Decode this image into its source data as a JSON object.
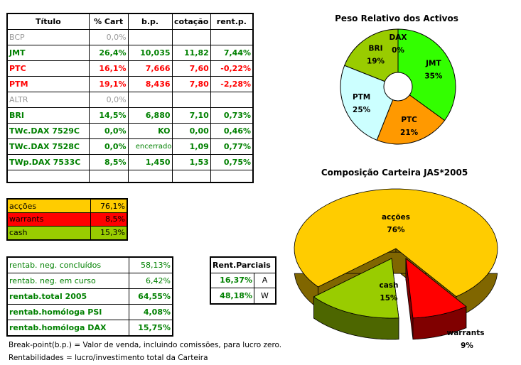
{
  "holdings_table": {
    "headers": [
      "Título",
      "% Cart",
      "b.p.",
      "cotação",
      "rent.p."
    ],
    "rows": [
      {
        "cells": [
          "BCP",
          "0,0%",
          "",
          "",
          ""
        ],
        "style": "gray"
      },
      {
        "cells": [
          "JMT",
          "26,4%",
          "10,035",
          "11,82",
          "7,44%"
        ],
        "style": "green"
      },
      {
        "cells": [
          "PTC",
          "16,1%",
          "7,666",
          "7,60",
          "-0,22%"
        ],
        "style": "red"
      },
      {
        "cells": [
          "PTM",
          "19,1%",
          "8,436",
          "7,80",
          "-2,28%"
        ],
        "style": "red"
      },
      {
        "cells": [
          "ALTR",
          "0,0%",
          "",
          "",
          ""
        ],
        "style": "gray"
      },
      {
        "cells": [
          "BRI",
          "14,5%",
          "6,880",
          "7,10",
          "0,73%"
        ],
        "style": "green"
      },
      {
        "cells": [
          "TWc.DAX 7529C",
          "0,0%",
          "KO",
          "0,00",
          "0,46%"
        ],
        "style": "green"
      },
      {
        "cells": [
          "TWc.DAX 7528C",
          "0,0%",
          "encerrado",
          "1,09",
          "0,77%"
        ],
        "style": "green"
      },
      {
        "cells": [
          "TWp.DAX 7533C",
          "8,5%",
          "1,450",
          "1,53",
          "0,75%"
        ],
        "style": "green"
      },
      {
        "cells": [
          "",
          "",
          "",
          "",
          ""
        ],
        "style": "empty"
      }
    ]
  },
  "allocation_table": [
    {
      "label": "acções",
      "value": "76,1%",
      "color": "#ffcc00"
    },
    {
      "label": "warrants",
      "value": "8,5%",
      "color": "#ff0000"
    },
    {
      "label": "cash",
      "value": "15,3%",
      "color": "#99cc00"
    }
  ],
  "returns_table": [
    {
      "label": "rentab. neg. concluídos",
      "value": "58,13%",
      "bold": false
    },
    {
      "label": "rentab. neg. em curso",
      "value": "6,42%",
      "bold": false
    },
    {
      "label": "rentab.total 2005",
      "value": "64,55%",
      "bold": true
    },
    {
      "label": "rentab.homóloga PSI",
      "value": "4,08%",
      "bold": true
    },
    {
      "label": "rentab.homóloga DAX",
      "value": "15,75%",
      "bold": true
    }
  ],
  "partial_returns": {
    "title": "Rent.Parciais",
    "rows": [
      {
        "value": "16,37%",
        "label": "A"
      },
      {
        "value": "48,18%",
        "label": "W"
      }
    ]
  },
  "notes": [
    "Break-point(b.p.) = Valor de venda, incluindo comissões, para lucro zero.",
    "Rentabilidades = lucro/investimento total da Carteira"
  ],
  "colors": {
    "green_text": "#008000",
    "red_text": "#ff0000",
    "gray_text": "#999999"
  },
  "chart_data": [
    {
      "type": "pie",
      "variant": "doughnut",
      "title": "Peso Relativo dos Activos",
      "categories": [
        "JMT",
        "PTC",
        "PTM",
        "BRI",
        "DAX"
      ],
      "values": [
        35,
        21,
        25,
        19,
        0
      ],
      "labels": [
        "35%",
        "21%",
        "25%",
        "19%",
        "0%"
      ],
      "colors": [
        "#33ff00",
        "#ff9900",
        "#ccffff",
        "#99cc00",
        "#ffffff"
      ],
      "legend": "none"
    },
    {
      "type": "pie",
      "variant": "3d-exploded",
      "title": "Composição Carteira JAS*2005",
      "categories": [
        "acções",
        "warrants",
        "cash"
      ],
      "values": [
        76,
        9,
        15
      ],
      "labels": [
        "76%",
        "9%",
        "15%"
      ],
      "colors": [
        "#ffcc00",
        "#ff0000",
        "#99cc00"
      ],
      "legend": "none"
    }
  ]
}
